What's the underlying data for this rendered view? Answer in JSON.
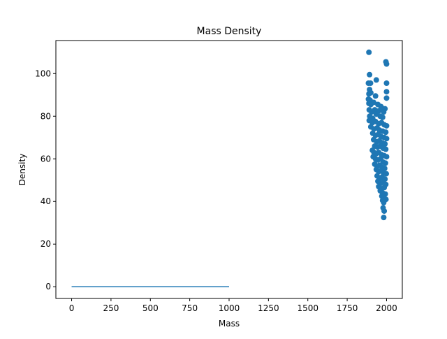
{
  "chart_data": {
    "type": "scatter",
    "title": "Mass Density",
    "xlabel": "Mass",
    "ylabel": "Density",
    "xlim": [
      -100,
      2100
    ],
    "ylim": [
      -5.5,
      115.5
    ],
    "xticks": [
      0,
      250,
      500,
      750,
      1000,
      1250,
      1500,
      1750,
      2000
    ],
    "yticks": [
      0,
      20,
      40,
      60,
      80,
      100
    ],
    "grid": false,
    "legend": "none",
    "colors": {
      "series": "#1f77b4",
      "axes": "#000000",
      "background": "#ffffff"
    },
    "line": {
      "x": [
        0,
        1000
      ],
      "y": [
        0,
        0
      ]
    },
    "series": [
      {
        "points": [
          [
            1888,
            110
          ],
          [
            1892,
            99.5
          ],
          [
            1996,
            105.5
          ],
          [
            2000,
            104.5
          ],
          [
            1885,
            95.5
          ],
          [
            1898,
            95.5
          ],
          [
            1935,
            97
          ],
          [
            2000,
            95.5
          ],
          [
            1892,
            92.5
          ],
          [
            1888,
            90.5
          ],
          [
            1900,
            91
          ],
          [
            2000,
            91.5
          ],
          [
            1885,
            88
          ],
          [
            1895,
            87.5
          ],
          [
            1930,
            89.5
          ],
          [
            2000,
            88.5
          ],
          [
            1888,
            86
          ],
          [
            1900,
            85.5
          ],
          [
            1918,
            86.5
          ],
          [
            1945,
            85.5
          ],
          [
            1965,
            84.5
          ],
          [
            1990,
            83.5
          ],
          [
            1890,
            83
          ],
          [
            1905,
            82
          ],
          [
            1925,
            83
          ],
          [
            1950,
            82.5
          ],
          [
            1972,
            83
          ],
          [
            1982,
            82
          ],
          [
            1893,
            80
          ],
          [
            1912,
            79
          ],
          [
            1935,
            81
          ],
          [
            1960,
            80
          ],
          [
            1975,
            79.5
          ],
          [
            1890,
            78
          ],
          [
            1910,
            77
          ],
          [
            1930,
            77.5
          ],
          [
            1950,
            76.5
          ],
          [
            1968,
            77
          ],
          [
            1985,
            76
          ],
          [
            2000,
            75.5
          ],
          [
            1900,
            75
          ],
          [
            1920,
            74
          ],
          [
            1940,
            74.5
          ],
          [
            1955,
            73.5
          ],
          [
            1975,
            73
          ],
          [
            1995,
            72.5
          ],
          [
            1912,
            72
          ],
          [
            1930,
            71
          ],
          [
            1948,
            71.5
          ],
          [
            1965,
            70.5
          ],
          [
            1985,
            70
          ],
          [
            2000,
            69.5
          ],
          [
            1918,
            69
          ],
          [
            1938,
            68
          ],
          [
            1955,
            68.5
          ],
          [
            1972,
            67.5
          ],
          [
            1990,
            67
          ],
          [
            1925,
            66
          ],
          [
            1942,
            65.5
          ],
          [
            1960,
            66
          ],
          [
            1978,
            65
          ],
          [
            1995,
            64.5
          ],
          [
            1910,
            64
          ],
          [
            1920,
            63
          ],
          [
            1935,
            62.5
          ],
          [
            1950,
            63
          ],
          [
            1968,
            62
          ],
          [
            1985,
            61.5
          ],
          [
            2000,
            61
          ],
          [
            1915,
            61
          ],
          [
            1930,
            60
          ],
          [
            1945,
            59.5
          ],
          [
            1962,
            60
          ],
          [
            1978,
            58.5
          ],
          [
            1993,
            58
          ],
          [
            1925,
            57.5
          ],
          [
            1940,
            56.5
          ],
          [
            1955,
            57
          ],
          [
            1972,
            56
          ],
          [
            1988,
            55.5
          ],
          [
            1935,
            55
          ],
          [
            1950,
            54
          ],
          [
            1965,
            54.5
          ],
          [
            1980,
            53.5
          ],
          [
            1998,
            53
          ],
          [
            1940,
            52
          ],
          [
            1958,
            51
          ],
          [
            1972,
            51.5
          ],
          [
            1990,
            50.5
          ],
          [
            1945,
            49.5
          ],
          [
            1962,
            48.5
          ],
          [
            1978,
            49
          ],
          [
            1995,
            48
          ],
          [
            1950,
            47
          ],
          [
            1968,
            46
          ],
          [
            1985,
            46.5
          ],
          [
            1960,
            45
          ],
          [
            1975,
            44
          ],
          [
            1992,
            43.5
          ],
          [
            1970,
            42.5
          ],
          [
            1985,
            41.5
          ],
          [
            1996,
            41
          ],
          [
            1975,
            40.5
          ],
          [
            1982,
            39.5
          ],
          [
            1978,
            37
          ],
          [
            1985,
            35.5
          ],
          [
            1982,
            32.5
          ]
        ]
      }
    ]
  }
}
